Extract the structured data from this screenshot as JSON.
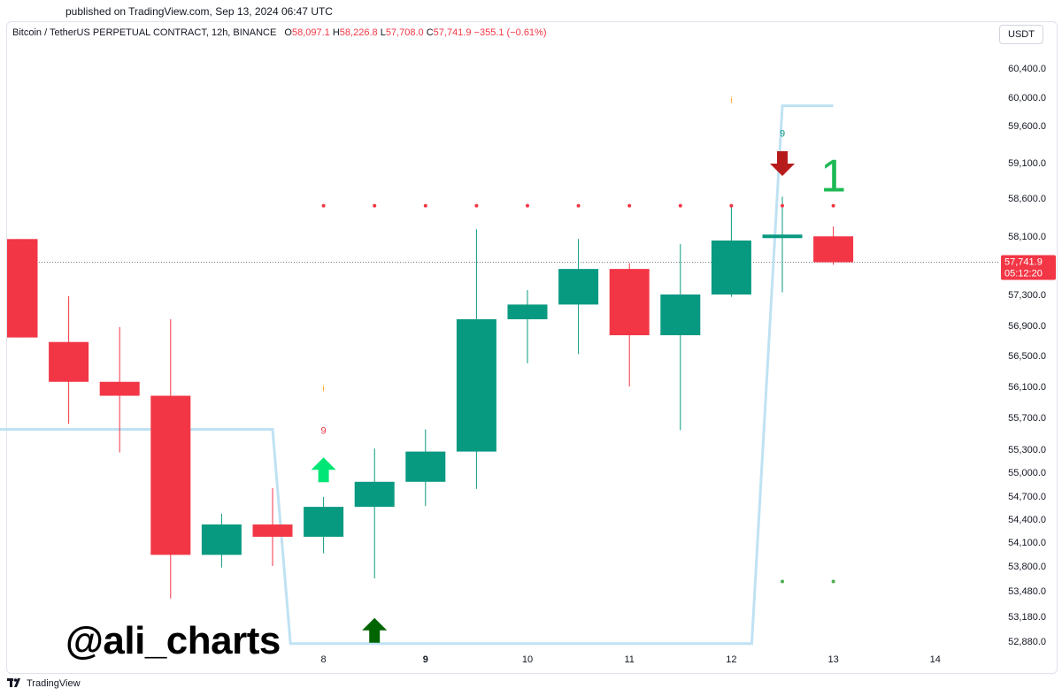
{
  "published": "published on TradingView.com, Sep 13, 2024 06:47 UTC",
  "legend": {
    "title": "Bitcoin / TetherUS PERPETUAL CONTRACT, 12h, BINANCE",
    "o_label": "O",
    "o_value": "58,097.1",
    "h_label": "H",
    "h_value": "58,226.8",
    "l_label": "L",
    "l_value": "57,708.0",
    "c_label": "C",
    "c_value": "57,741.9",
    "change": "−355.1 (−0.61%)"
  },
  "currency_button": "USDT",
  "watermark": "@ali_charts",
  "tradingview_logo": "TradingView",
  "colors": {
    "up": "#089981",
    "down": "#f23645",
    "signal_line": "#bfe2f3",
    "signal_up_bright": "#00e676",
    "signal_up_dark": "#006400",
    "signal_down": "#b71c1c",
    "dot_red": "#f23645",
    "dot_green": "#4caf50",
    "nine_orange": "#ff9800",
    "one_green": "#1db954"
  },
  "chart_data": {
    "type": "candlestick",
    "timeframe": "12h",
    "y_ticks": [
      "60,400.0",
      "60,000.0",
      "59,600.0",
      "59,100.0",
      "58,600.0",
      "58,100.0",
      "57,300.0",
      "56,900.0",
      "56,500.0",
      "56,100.0",
      "55,700.0",
      "55,300.0",
      "55,000.0",
      "54,700.0",
      "54,400.0",
      "54,100.0",
      "53,800.0",
      "53,480.0",
      "53,180.0",
      "52,880.0"
    ],
    "x_ticks": [
      {
        "label": "8",
        "bold": false,
        "index": 6
      },
      {
        "label": "9",
        "bold": true,
        "index": 8
      },
      {
        "label": "10",
        "bold": false,
        "index": 10
      },
      {
        "label": "11",
        "bold": false,
        "index": 12
      },
      {
        "label": "12",
        "bold": false,
        "index": 14
      },
      {
        "label": "13",
        "bold": false,
        "index": 16
      },
      {
        "label": "14",
        "bold": false,
        "index": 18
      }
    ],
    "candles": [
      {
        "i": 0,
        "o": 58060,
        "h": 58060,
        "l": 56740,
        "c": 56740
      },
      {
        "i": 1,
        "o": 56680,
        "h": 57280,
        "l": 55620,
        "c": 56160
      },
      {
        "i": 2,
        "o": 56160,
        "h": 56880,
        "l": 55260,
        "c": 55980
      },
      {
        "i": 3,
        "o": 55980,
        "h": 56980,
        "l": 53390,
        "c": 53940
      },
      {
        "i": 4,
        "o": 53940,
        "h": 54470,
        "l": 53780,
        "c": 54330
      },
      {
        "i": 5,
        "o": 54330,
        "h": 54800,
        "l": 53800,
        "c": 54170
      },
      {
        "i": 6,
        "o": 54170,
        "h": 54690,
        "l": 53960,
        "c": 54560
      },
      {
        "i": 7,
        "o": 54560,
        "h": 55310,
        "l": 53640,
        "c": 54880
      },
      {
        "i": 8,
        "o": 54880,
        "h": 55550,
        "l": 54570,
        "c": 55270
      },
      {
        "i": 9,
        "o": 55270,
        "h": 58190,
        "l": 54790,
        "c": 56980
      },
      {
        "i": 10,
        "o": 56980,
        "h": 57360,
        "l": 56400,
        "c": 57170
      },
      {
        "i": 11,
        "o": 57170,
        "h": 58060,
        "l": 56520,
        "c": 57650
      },
      {
        "i": 12,
        "o": 57650,
        "h": 57730,
        "l": 56100,
        "c": 56770
      },
      {
        "i": 13,
        "o": 56770,
        "h": 57990,
        "l": 55540,
        "c": 57300
      },
      {
        "i": 14,
        "o": 57300,
        "h": 58480,
        "l": 57270,
        "c": 58040
      },
      {
        "i": 15,
        "o": 58097,
        "h": 58620,
        "l": 57330,
        "c": 58097
      },
      {
        "i": 16,
        "o": 58097,
        "h": 58227,
        "l": 57708,
        "c": 57742
      }
    ],
    "flat_candle_index": 15,
    "last_price": {
      "value": 57741.9,
      "label": "57,741.9",
      "countdown": "05:12:20"
    },
    "stop_line": [
      {
        "x": -0.5,
        "y": 55550
      },
      {
        "x": 5.0,
        "y": 55550
      },
      {
        "x": 5.35,
        "y": 52850
      },
      {
        "x": 14.4,
        "y": 52850
      },
      {
        "x": 15.0,
        "y": 59880
      },
      {
        "x": 16.0,
        "y": 59880
      }
    ],
    "red_dots": {
      "price": 58500,
      "indices": [
        6,
        7,
        8,
        9,
        10,
        11,
        12,
        13,
        14,
        15,
        16
      ]
    },
    "green_dots": {
      "price": 53600,
      "indices": [
        15,
        16
      ]
    },
    "markers": [
      {
        "type": "arrow-up",
        "color": "#00e676",
        "i": 6,
        "price": 55020,
        "name": "buy-signal-arrow"
      },
      {
        "type": "arrow-up",
        "color": "#006400",
        "i": 7,
        "price": 53000,
        "name": "buy-signal-arrow-dark"
      },
      {
        "type": "arrow-down",
        "color": "#b71c1c",
        "i": 15,
        "price": 59100,
        "name": "sell-signal-arrow"
      }
    ],
    "labels": [
      {
        "text": "9",
        "color": "#f23645",
        "i": 6,
        "price": 55540,
        "size": 11
      },
      {
        "text": "9",
        "color": "#089981",
        "i": 15,
        "price": 59500,
        "size": 11
      },
      {
        "text": "1",
        "color": "#1db954",
        "i": 16,
        "price": 58920,
        "size": 52
      },
      {
        "text": "i",
        "color": "#ff9800",
        "i": 6,
        "price": 56080,
        "size": 10
      },
      {
        "text": "i",
        "color": "#ff9800",
        "i": 14,
        "price": 59960,
        "size": 10
      }
    ]
  }
}
